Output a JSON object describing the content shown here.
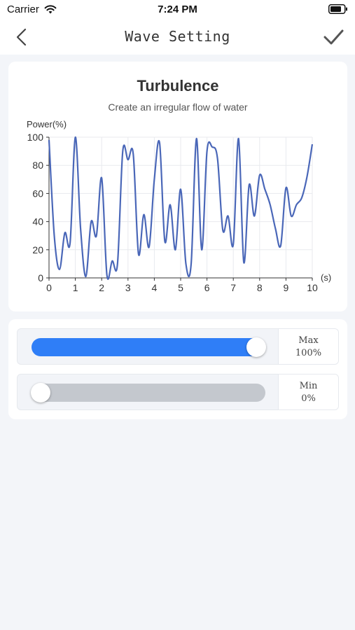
{
  "status_bar": {
    "carrier": "Carrier",
    "time": "7:24 PM"
  },
  "nav": {
    "title": "Wave Setting",
    "back_icon": "chevron-left-icon",
    "confirm_icon": "checkmark-icon"
  },
  "chart_data": {
    "type": "line",
    "title": "Turbulence",
    "subtitle": "Create an irregular flow of water",
    "ylabel": "Power(%)",
    "xlabel": "(s)",
    "xlim": [
      0,
      10
    ],
    "ylim": [
      0,
      100
    ],
    "x_ticks": [
      0,
      1,
      2,
      3,
      4,
      5,
      6,
      7,
      8,
      9,
      10
    ],
    "y_ticks": [
      0,
      20,
      40,
      60,
      80,
      100
    ],
    "grid": true,
    "line_color": "#4a67b8",
    "x": [
      0,
      0.2,
      0.4,
      0.6,
      0.8,
      1.0,
      1.2,
      1.4,
      1.6,
      1.8,
      2.0,
      2.2,
      2.4,
      2.6,
      2.8,
      3.0,
      3.2,
      3.4,
      3.6,
      3.8,
      4.0,
      4.2,
      4.4,
      4.6,
      4.8,
      5.0,
      5.2,
      5.4,
      5.6,
      5.8,
      6.0,
      6.2,
      6.4,
      6.6,
      6.8,
      7.0,
      7.2,
      7.4,
      7.6,
      7.8,
      8.0,
      8.2,
      8.4,
      8.6,
      8.8,
      9.0,
      9.2,
      9.4,
      9.6,
      9.8,
      10.0
    ],
    "values": [
      98,
      30,
      6,
      32,
      25,
      100,
      35,
      1,
      40,
      30,
      71,
      2,
      12,
      10,
      90,
      84,
      88,
      17,
      45,
      22,
      70,
      96,
      26,
      52,
      20,
      63,
      10,
      10,
      99,
      20,
      90,
      93,
      85,
      34,
      44,
      24,
      99,
      11,
      66,
      44,
      73,
      63,
      52,
      35,
      23,
      64,
      44,
      52,
      57,
      72,
      95
    ]
  },
  "sliders": [
    {
      "label": "Max",
      "value_text": "100%",
      "value": 1.0,
      "track_color": "#2f7ef7"
    },
    {
      "label": "Min",
      "value_text": "0%",
      "value": 0.0,
      "track_color": "#c4c8ce"
    }
  ]
}
